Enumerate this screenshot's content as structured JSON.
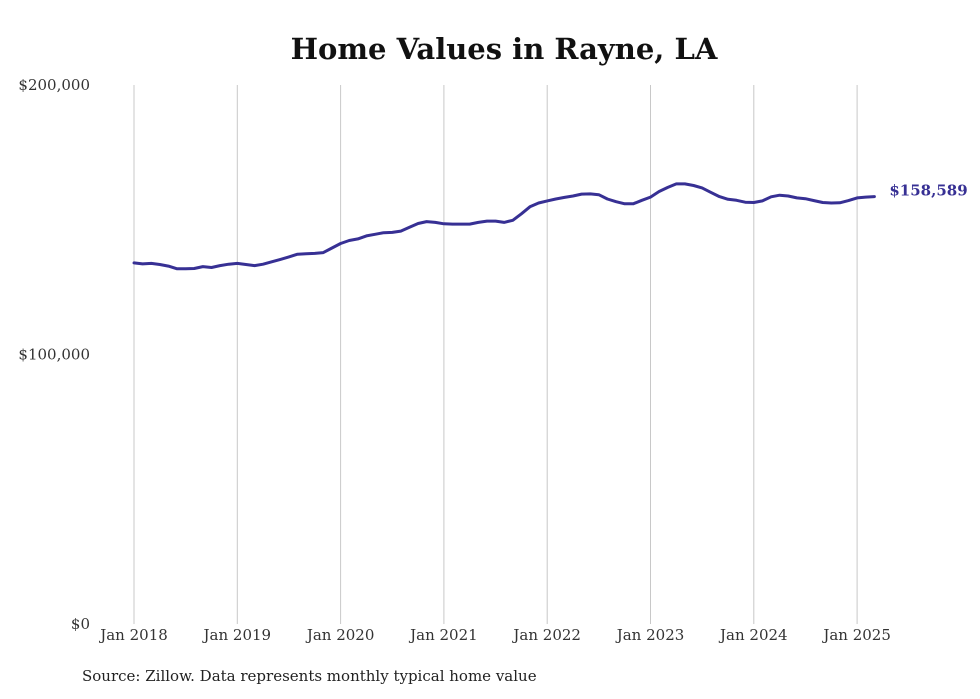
{
  "chart_data": {
    "type": "line",
    "title": "Home Values in Rayne, LA",
    "ylim": [
      0,
      200000
    ],
    "y_ticks": [
      {
        "value": 200000,
        "label": "$200,000"
      },
      {
        "value": 100000,
        "label": "$100,000"
      },
      {
        "value": 0,
        "label": "$0"
      }
    ],
    "x_ticks": [
      {
        "value": 2018.0,
        "label": "Jan 2018"
      },
      {
        "value": 2019.0,
        "label": "Jan 2019"
      },
      {
        "value": 2020.0,
        "label": "Jan 2020"
      },
      {
        "value": 2021.0,
        "label": "Jan 2021"
      },
      {
        "value": 2022.0,
        "label": "Jan 2022"
      },
      {
        "value": 2023.0,
        "label": "Jan 2023"
      },
      {
        "value": 2024.0,
        "label": "Jan 2024"
      },
      {
        "value": 2025.0,
        "label": "Jan 2025"
      }
    ],
    "grid": "vertical",
    "series": [
      {
        "color": "#373094",
        "end_label": "$158,589",
        "x": [
          2018.0,
          2018.083,
          2018.167,
          2018.25,
          2018.333,
          2018.417,
          2018.5,
          2018.583,
          2018.667,
          2018.75,
          2018.833,
          2018.917,
          2019.0,
          2019.083,
          2019.167,
          2019.25,
          2019.333,
          2019.417,
          2019.5,
          2019.583,
          2019.667,
          2019.75,
          2019.833,
          2019.917,
          2020.0,
          2020.083,
          2020.167,
          2020.25,
          2020.333,
          2020.417,
          2020.5,
          2020.583,
          2020.667,
          2020.75,
          2020.833,
          2020.917,
          2021.0,
          2021.083,
          2021.167,
          2021.25,
          2021.333,
          2021.417,
          2021.5,
          2021.583,
          2021.667,
          2021.75,
          2021.833,
          2021.917,
          2022.0,
          2022.083,
          2022.167,
          2022.25,
          2022.333,
          2022.417,
          2022.5,
          2022.583,
          2022.667,
          2022.75,
          2022.833,
          2022.917,
          2023.0,
          2023.083,
          2023.167,
          2023.25,
          2023.333,
          2023.417,
          2023.5,
          2023.583,
          2023.667,
          2023.75,
          2023.833,
          2023.917,
          2024.0,
          2024.083,
          2024.167,
          2024.25,
          2024.333,
          2024.417,
          2024.5,
          2024.583,
          2024.667,
          2024.75,
          2024.833,
          2024.917,
          2025.0,
          2025.083,
          2025.167
        ],
        "values": [
          134000,
          133600,
          133800,
          133400,
          132800,
          131800,
          131800,
          131900,
          132600,
          132300,
          133000,
          133500,
          133800,
          133400,
          133000,
          133500,
          134400,
          135300,
          136200,
          137200,
          137400,
          137500,
          137800,
          139500,
          141200,
          142300,
          142900,
          144000,
          144600,
          145200,
          145300,
          145800,
          147200,
          148600,
          149300,
          149000,
          148500,
          148400,
          148400,
          148400,
          149000,
          149500,
          149500,
          149000,
          149800,
          152200,
          154800,
          156200,
          157000,
          157700,
          158300,
          158800,
          159500,
          159600,
          159300,
          157700,
          156700,
          155900,
          155900,
          157200,
          158400,
          160500,
          162000,
          163300,
          163300,
          162700,
          161800,
          160200,
          158600,
          157600,
          157200,
          156500,
          156400,
          157000,
          158500,
          159100,
          158800,
          158100,
          157800,
          157100,
          156400,
          156200,
          156300,
          157100,
          158100,
          158400,
          158589
        ]
      }
    ]
  },
  "source": "Source: Zillow. Data represents monthly typical home value"
}
